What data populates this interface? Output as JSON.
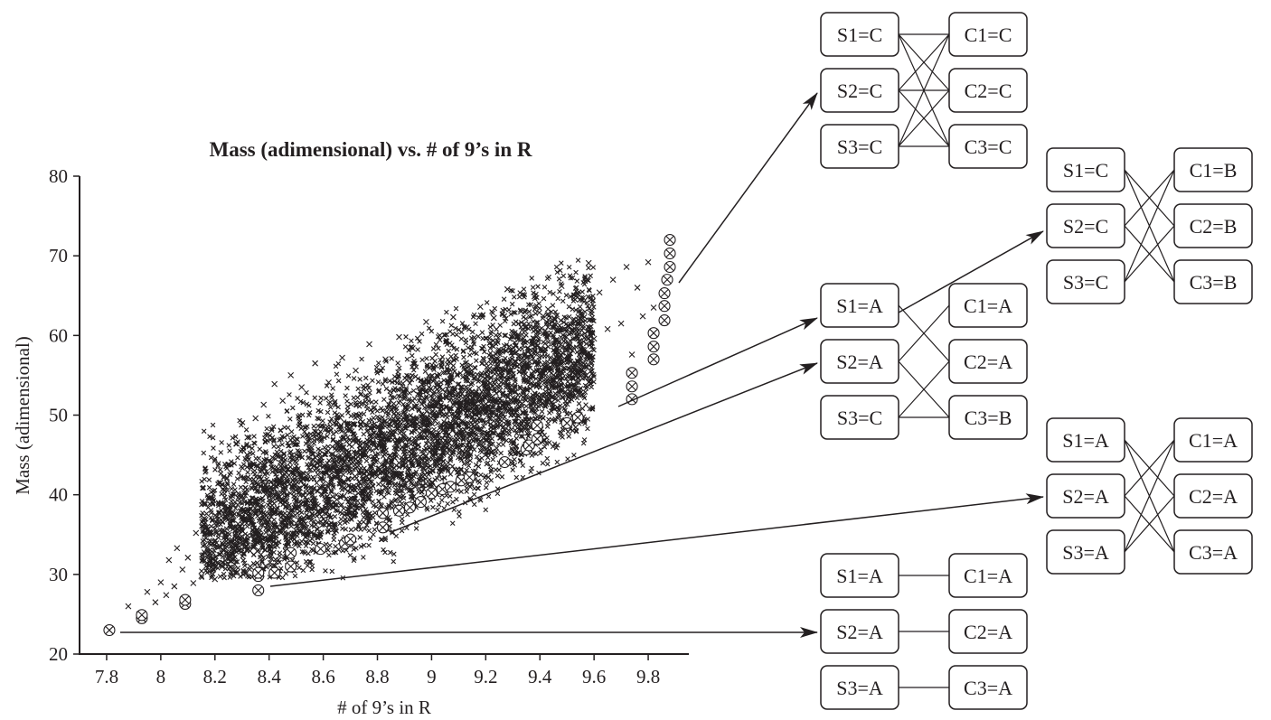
{
  "chart_data": {
    "type": "scatter",
    "title": "Mass (adimensional) vs. # of 9’s in R",
    "xlabel": "# of 9’s in R",
    "ylabel": "Mass (adimensional)",
    "xlim": [
      7.7,
      9.95
    ],
    "ylim": [
      20,
      80
    ],
    "xticks": [
      "7.8",
      "8",
      "8.2",
      "8.4",
      "8.6",
      "8.8",
      "9",
      "9.2",
      "9.4",
      "9.6",
      "9.8"
    ],
    "yticks": [
      "20",
      "30",
      "40",
      "50",
      "60",
      "70",
      "80"
    ],
    "grid": false,
    "series": [
      {
        "marker": "x",
        "points": [
          [
            7.88,
            26.0
          ],
          [
            7.92,
            25.0
          ],
          [
            7.95,
            27.8
          ],
          [
            7.98,
            26.5
          ],
          [
            8.0,
            29.0
          ],
          [
            8.02,
            27.4
          ],
          [
            8.03,
            31.8
          ],
          [
            8.05,
            28.5
          ],
          [
            8.06,
            33.3
          ],
          [
            8.08,
            30.6
          ],
          [
            8.1,
            32.1
          ],
          [
            8.12,
            28.9
          ],
          [
            8.13,
            35.2
          ],
          [
            8.15,
            29.8
          ],
          [
            8.16,
            37.0
          ],
          [
            8.18,
            31.2
          ],
          [
            8.19,
            39.1
          ],
          [
            8.2,
            29.4
          ],
          [
            8.22,
            41.5
          ],
          [
            8.23,
            33.8
          ],
          [
            8.25,
            43.8
          ],
          [
            8.27,
            30.6
          ],
          [
            8.28,
            46.4
          ],
          [
            8.3,
            35.5
          ],
          [
            8.32,
            47.2
          ],
          [
            8.33,
            31.0
          ],
          [
            8.35,
            49.6
          ],
          [
            8.37,
            32.5
          ],
          [
            8.38,
            51.3
          ],
          [
            8.4,
            34.2
          ],
          [
            8.42,
            53.9
          ],
          [
            8.43,
            33.6
          ],
          [
            8.45,
            51.8
          ],
          [
            8.47,
            35.1
          ],
          [
            8.48,
            55.0
          ],
          [
            8.5,
            36.4
          ],
          [
            8.52,
            53.5
          ],
          [
            8.55,
            37.2
          ],
          [
            8.57,
            56.5
          ],
          [
            8.6,
            38.0
          ],
          [
            8.62,
            54.1
          ],
          [
            8.65,
            39.4
          ],
          [
            8.67,
            57.2
          ],
          [
            8.7,
            40.8
          ],
          [
            8.72,
            55.6
          ],
          [
            8.75,
            41.5
          ],
          [
            8.77,
            58.9
          ],
          [
            8.8,
            42.3
          ],
          [
            8.83,
            57.0
          ],
          [
            8.85,
            43.6
          ],
          [
            8.88,
            59.8
          ],
          [
            8.9,
            44.4
          ],
          [
            8.93,
            58.4
          ],
          [
            8.95,
            46.2
          ],
          [
            8.98,
            61.7
          ],
          [
            9.0,
            47.5
          ],
          [
            9.03,
            60.0
          ],
          [
            9.05,
            48.8
          ],
          [
            9.08,
            62.3
          ],
          [
            9.1,
            49.6
          ],
          [
            9.13,
            61.0
          ],
          [
            9.15,
            50.9
          ],
          [
            9.18,
            63.6
          ],
          [
            9.2,
            51.4
          ],
          [
            9.23,
            62.2
          ],
          [
            9.25,
            53.0
          ],
          [
            9.28,
            65.8
          ],
          [
            9.3,
            52.2
          ],
          [
            9.33,
            63.0
          ],
          [
            9.35,
            54.5
          ],
          [
            9.38,
            64.9
          ],
          [
            9.4,
            55.3
          ],
          [
            9.43,
            63.3
          ],
          [
            9.45,
            56.8
          ],
          [
            9.48,
            66.2
          ],
          [
            9.5,
            57.4
          ],
          [
            9.53,
            64.5
          ],
          [
            9.55,
            58.9
          ],
          [
            9.58,
            69.1
          ],
          [
            9.6,
            59.6
          ],
          [
            9.62,
            65.4
          ],
          [
            9.65,
            60.8
          ],
          [
            9.67,
            67.0
          ],
          [
            9.7,
            61.5
          ],
          [
            9.72,
            68.6
          ],
          [
            9.74,
            57.6
          ],
          [
            9.76,
            66.0
          ],
          [
            9.78,
            62.4
          ],
          [
            9.8,
            69.2
          ],
          [
            9.82,
            63.5
          ]
        ]
      },
      {
        "marker": "circle-x",
        "points": [
          [
            7.81,
            23.0
          ],
          [
            7.93,
            24.5
          ],
          [
            7.93,
            24.9
          ],
          [
            8.09,
            26.3
          ],
          [
            8.09,
            26.8
          ],
          [
            8.36,
            28.0
          ],
          [
            8.36,
            29.8
          ],
          [
            8.36,
            30.2
          ],
          [
            8.42,
            30.2
          ],
          [
            8.48,
            31.0
          ],
          [
            8.48,
            32.7
          ],
          [
            8.59,
            33.2
          ],
          [
            8.68,
            33.9
          ],
          [
            8.7,
            34.4
          ],
          [
            8.82,
            35.9
          ],
          [
            8.82,
            37.7
          ],
          [
            8.88,
            38.0
          ],
          [
            8.92,
            38.4
          ],
          [
            8.96,
            39.1
          ],
          [
            9.0,
            40.2
          ],
          [
            9.04,
            40.7
          ],
          [
            9.07,
            41.0
          ],
          [
            9.11,
            41.8
          ],
          [
            9.14,
            42.2
          ],
          [
            9.27,
            44.1
          ],
          [
            9.35,
            45.7
          ],
          [
            9.36,
            46.2
          ],
          [
            9.39,
            47.0
          ],
          [
            9.39,
            48.7
          ],
          [
            9.5,
            49.0
          ],
          [
            9.54,
            49.7
          ],
          [
            9.74,
            52.0
          ],
          [
            9.74,
            53.6
          ],
          [
            9.74,
            55.3
          ],
          [
            9.82,
            57.0
          ],
          [
            9.82,
            58.6
          ],
          [
            9.82,
            60.3
          ],
          [
            9.86,
            61.9
          ],
          [
            9.86,
            63.7
          ],
          [
            9.86,
            65.3
          ],
          [
            9.87,
            67.0
          ],
          [
            9.88,
            68.6
          ],
          [
            9.88,
            70.3
          ],
          [
            9.88,
            72.0
          ]
        ]
      }
    ]
  },
  "diagrams": [
    {
      "id": "d1",
      "s": [
        "S1=C",
        "S2=C",
        "S3=C"
      ],
      "c": [
        "C1=C",
        "C2=C",
        "C3=C"
      ]
    },
    {
      "id": "d2",
      "s": [
        "S1=C",
        "S2=C",
        "S3=C"
      ],
      "c": [
        "C1=B",
        "C2=B",
        "C3=B"
      ]
    },
    {
      "id": "d3",
      "s": [
        "S1=A",
        "S2=A",
        "S3=C"
      ],
      "c": [
        "C1=A",
        "C2=A",
        "C3=B"
      ]
    },
    {
      "id": "d4",
      "s": [
        "S1=A",
        "S2=A",
        "S3=A"
      ],
      "c": [
        "C1=A",
        "C2=A",
        "C3=A"
      ]
    },
    {
      "id": "d5",
      "s": [
        "S1=A",
        "S2=A",
        "S3=A"
      ],
      "c": [
        "C1=A",
        "C2=A",
        "C3=A"
      ]
    }
  ]
}
